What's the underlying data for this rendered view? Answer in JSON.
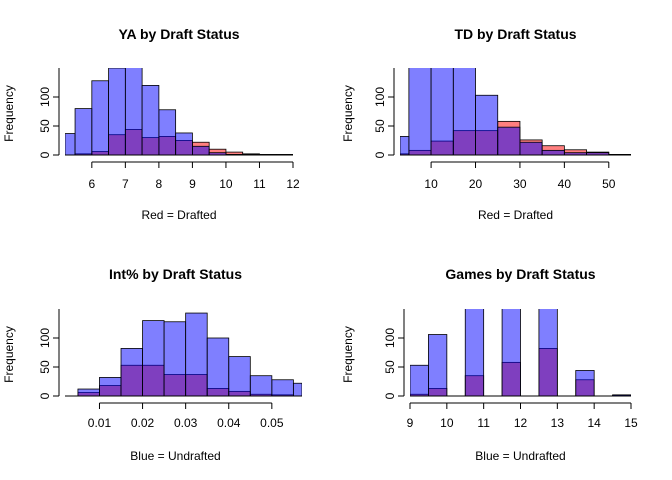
{
  "chart_data": [
    {
      "type": "histogram",
      "title": "YA by Draft Status",
      "xlabel": "Red = Drafted",
      "ylabel": "Frequency",
      "xlim": [
        5.2,
        12.0
      ],
      "ylim": [
        0,
        150
      ],
      "xticks": [
        6,
        7,
        8,
        9,
        10,
        11,
        12
      ],
      "yticks": [
        0,
        50,
        100
      ],
      "bins": [
        [
          5.2,
          5.5
        ],
        [
          5.5,
          6.0
        ],
        [
          6.0,
          6.5
        ],
        [
          6.5,
          7.0
        ],
        [
          7.0,
          7.5
        ],
        [
          7.5,
          8.0
        ],
        [
          8.0,
          8.5
        ],
        [
          8.5,
          9.0
        ],
        [
          9.0,
          9.5
        ],
        [
          9.5,
          10.0
        ],
        [
          10.0,
          10.5
        ],
        [
          10.5,
          11.0
        ],
        [
          11.0,
          11.5
        ],
        [
          11.5,
          12.0
        ]
      ],
      "series": [
        {
          "name": "Drafted",
          "color": "#ff0000",
          "values": [
            0,
            2,
            6,
            35,
            44,
            30,
            32,
            25,
            22,
            10,
            5,
            2,
            1,
            1
          ]
        },
        {
          "name": "Undrafted",
          "color": "#0000ff",
          "values": [
            37,
            80,
            128,
            150,
            155,
            120,
            78,
            38,
            15,
            4,
            1,
            1,
            0,
            0
          ]
        }
      ]
    },
    {
      "type": "histogram",
      "title": "TD by Draft Status",
      "xlabel": "Red = Drafted",
      "ylabel": "Frequency",
      "xlim": [
        3,
        55
      ],
      "ylim": [
        0,
        150
      ],
      "xticks": [
        10,
        20,
        30,
        40,
        50
      ],
      "yticks": [
        0,
        50,
        100
      ],
      "bins": [
        [
          3,
          5
        ],
        [
          5,
          10
        ],
        [
          10,
          15
        ],
        [
          15,
          20
        ],
        [
          20,
          25
        ],
        [
          25,
          30
        ],
        [
          30,
          35
        ],
        [
          35,
          40
        ],
        [
          40,
          45
        ],
        [
          45,
          50
        ],
        [
          50,
          55
        ]
      ],
      "series": [
        {
          "name": "Drafted",
          "color": "#ff0000",
          "values": [
            2,
            8,
            24,
            42,
            42,
            58,
            26,
            16,
            9,
            5,
            1
          ]
        },
        {
          "name": "Undrafted",
          "color": "#0000ff",
          "values": [
            32,
            155,
            155,
            155,
            103,
            48,
            22,
            8,
            4,
            4,
            1
          ]
        }
      ]
    },
    {
      "type": "histogram",
      "title": "Int% by Draft Status",
      "xlabel": "Blue = Undrafted",
      "ylabel": "Frequency",
      "xlim": [
        0.002,
        0.057
      ],
      "ylim": [
        0,
        150
      ],
      "xticks": [
        0.01,
        0.02,
        0.03,
        0.04,
        0.05
      ],
      "xtick_labels": [
        "0.01",
        "0.02",
        "0.03",
        "0.04",
        "0.05"
      ],
      "yticks": [
        0,
        50,
        100
      ],
      "bins": [
        [
          0.002,
          0.005
        ],
        [
          0.005,
          0.01
        ],
        [
          0.01,
          0.015
        ],
        [
          0.015,
          0.02
        ],
        [
          0.02,
          0.025
        ],
        [
          0.025,
          0.03
        ],
        [
          0.03,
          0.035
        ],
        [
          0.035,
          0.04
        ],
        [
          0.04,
          0.045
        ],
        [
          0.045,
          0.05
        ],
        [
          0.05,
          0.055
        ],
        [
          0.055,
          0.057
        ]
      ],
      "series": [
        {
          "name": "Drafted",
          "color": "#ff0000",
          "values": [
            0,
            6,
            18,
            53,
            53,
            37,
            37,
            13,
            8,
            3,
            2,
            0
          ]
        },
        {
          "name": "Undrafted",
          "color": "#0000ff",
          "values": [
            0,
            12,
            32,
            82,
            130,
            128,
            143,
            100,
            68,
            35,
            28,
            22
          ]
        }
      ]
    },
    {
      "type": "histogram",
      "title": "Games by Draft Status",
      "xlabel": "Blue = Undrafted",
      "ylabel": "Frequency",
      "xlim": [
        9,
        15
      ],
      "ylim": [
        0,
        150
      ],
      "xticks": [
        9,
        10,
        11,
        12,
        13,
        14,
        15
      ],
      "yticks": [
        0,
        50,
        100
      ],
      "bins": [
        [
          9.0,
          9.5
        ],
        [
          9.5,
          10.0
        ],
        [
          10.0,
          10.5
        ],
        [
          10.5,
          11.0
        ],
        [
          11.0,
          11.5
        ],
        [
          11.5,
          12.0
        ],
        [
          12.0,
          12.5
        ],
        [
          12.5,
          13.0
        ],
        [
          13.0,
          13.5
        ],
        [
          13.5,
          14.0
        ],
        [
          14.0,
          14.5
        ],
        [
          14.5,
          15.0
        ]
      ],
      "series": [
        {
          "name": "Drafted",
          "color": "#ff0000",
          "values": [
            3,
            13,
            0,
            35,
            0,
            58,
            0,
            82,
            0,
            28,
            0,
            1
          ]
        },
        {
          "name": "Undrafted",
          "color": "#0000ff",
          "values": [
            53,
            106,
            0,
            155,
            0,
            155,
            0,
            155,
            0,
            44,
            0,
            2
          ]
        }
      ]
    }
  ]
}
